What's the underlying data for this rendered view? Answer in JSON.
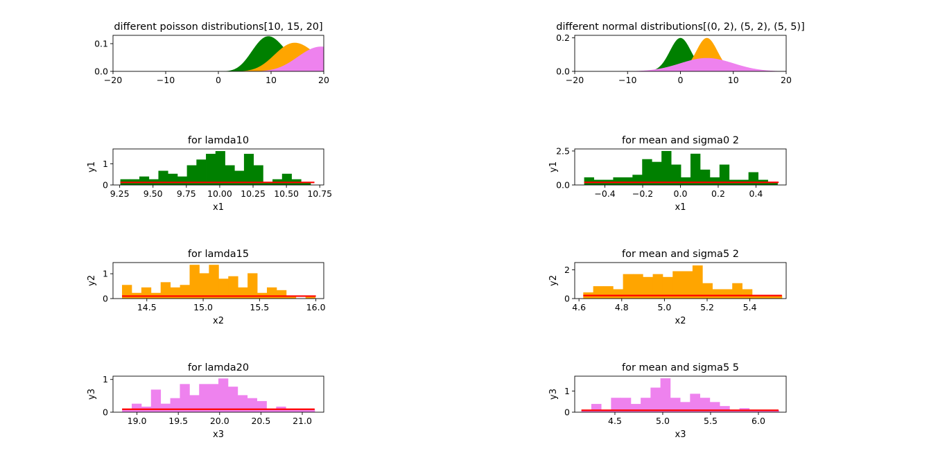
{
  "figure": {
    "background": "#ffffff"
  },
  "chart_data": [
    {
      "type": "area",
      "title": "different poisson distributions[10, 15, 20]",
      "xlabel": "",
      "ylabel": "",
      "xlim": [
        -20,
        20
      ],
      "ylim": [
        0,
        0.13
      ],
      "xticks": [
        -20,
        -10,
        0,
        10,
        20
      ],
      "xticklabels": [
        "−20",
        "−10",
        "0",
        "10",
        "20"
      ],
      "yticks": [
        0,
        0.1
      ],
      "yticklabels": [
        "0.0",
        "0.1"
      ],
      "grid": false,
      "series": [
        {
          "dist": "poisson",
          "lambda": 10,
          "color": "#008000"
        },
        {
          "dist": "poisson",
          "lambda": 15,
          "color": "#ffa500"
        },
        {
          "dist": "poisson",
          "lambda": 20,
          "color": "#ee82ee"
        }
      ]
    },
    {
      "type": "area",
      "title": "different normal distributions[(0, 2), (5, 2), (5, 5)]",
      "xlabel": "",
      "ylabel": "",
      "xlim": [
        -20,
        20
      ],
      "ylim": [
        0,
        0.215
      ],
      "xticks": [
        -20,
        -10,
        0,
        10,
        20
      ],
      "xticklabels": [
        "−20",
        "−10",
        "0",
        "10",
        "20"
      ],
      "yticks": [
        0,
        0.2
      ],
      "yticklabels": [
        "0.0",
        "0.2"
      ],
      "grid": false,
      "series": [
        {
          "dist": "normal",
          "mean": 0,
          "sigma": 2,
          "color": "#008000"
        },
        {
          "dist": "normal",
          "mean": 5,
          "sigma": 2,
          "color": "#ffa500"
        },
        {
          "dist": "normal",
          "mean": 5,
          "sigma": 5,
          "color": "#ee82ee"
        }
      ]
    },
    {
      "type": "bar",
      "title": "for lamda10",
      "xlabel": "x1",
      "ylabel": "y1",
      "color": "#008000",
      "line_color": "#ff0000",
      "xlim": [
        9.2,
        10.78
      ],
      "ylim": [
        0,
        1.7
      ],
      "xticks": [
        9.25,
        9.5,
        9.75,
        10.0,
        10.25,
        10.5,
        10.75
      ],
      "xticklabels": [
        "9.25",
        "9.50",
        "9.75",
        "10.00",
        "10.25",
        "10.50",
        "10.75"
      ],
      "yticks": [
        0,
        1
      ],
      "yticklabels": [
        "0",
        "1"
      ],
      "bin_start": 9.255,
      "bin_width": 0.0713,
      "values": [
        0.27,
        0.27,
        0.4,
        0.27,
        0.67,
        0.53,
        0.4,
        0.93,
        1.2,
        1.47,
        1.6,
        0.93,
        0.67,
        1.47,
        0.93,
        0.13,
        0.27,
        0.53,
        0.27,
        0.13
      ],
      "line": {
        "x": [
          9.255,
          10.71
        ],
        "y": [
          0.12,
          0.12
        ]
      }
    },
    {
      "type": "bar",
      "title": "for mean and sigma0 2",
      "xlabel": "x1",
      "ylabel": "y1",
      "color": "#008000",
      "line_color": "#ff0000",
      "xlim": [
        -0.56,
        0.56
      ],
      "ylim": [
        0,
        2.65
      ],
      "xticks": [
        -0.4,
        -0.2,
        0.0,
        0.2,
        0.4
      ],
      "xticklabels": [
        "−0.4",
        "−0.2",
        "0.0",
        "0.2",
        "0.4"
      ],
      "yticks": [
        0,
        2.5
      ],
      "yticklabels": [
        "0.0",
        "2.5"
      ],
      "bin_start": -0.51,
      "bin_width": 0.0512,
      "values": [
        0.56,
        0.38,
        0.38,
        0.56,
        0.56,
        0.75,
        1.9,
        1.7,
        2.5,
        1.5,
        0.56,
        2.3,
        1.13,
        0.56,
        1.5,
        0.38,
        0.38,
        0.94,
        0.38,
        0.19
      ],
      "line": {
        "x": [
          -0.51,
          0.52
        ],
        "y": [
          0.19,
          0.19
        ]
      }
    },
    {
      "type": "bar",
      "title": "for lamda15",
      "xlabel": "x2",
      "ylabel": "y2",
      "color": "#ffa500",
      "line_color": "#ff0000",
      "xlim": [
        14.2,
        16.07
      ],
      "ylim": [
        0,
        1.45
      ],
      "xticks": [
        14.5,
        15.0,
        15.5,
        16.0
      ],
      "xticklabels": [
        "14.5",
        "15.0",
        "15.5",
        "16.0"
      ],
      "yticks": [
        0,
        1
      ],
      "yticklabels": [
        "0",
        "1"
      ],
      "bin_start": 14.28,
      "bin_width": 0.0857,
      "values": [
        0.55,
        0.23,
        0.45,
        0.23,
        0.66,
        0.45,
        0.55,
        1.36,
        1.02,
        1.36,
        0.8,
        0.9,
        0.45,
        1.02,
        0.23,
        0.45,
        0.34,
        0.11,
        0.0,
        0.11
      ],
      "line": {
        "x": [
          14.28,
          16.0
        ],
        "y": [
          0.1,
          0.1
        ]
      }
    },
    {
      "type": "bar",
      "title": "for mean and sigma5 2",
      "xlabel": "x2",
      "ylabel": "y2",
      "color": "#ffa500",
      "line_color": "#ff0000",
      "xlim": [
        4.58,
        5.57
      ],
      "ylim": [
        0,
        2.5
      ],
      "xticks": [
        4.6,
        4.8,
        5.0,
        5.2,
        5.4
      ],
      "xticklabels": [
        "4.6",
        "4.8",
        "5.0",
        "5.2",
        "5.4"
      ],
      "yticks": [
        0,
        2
      ],
      "yticklabels": [
        "0",
        "2"
      ],
      "bin_start": 4.62,
      "bin_width": 0.0465,
      "values": [
        0.43,
        0.86,
        0.86,
        0.65,
        1.7,
        1.7,
        1.5,
        1.7,
        1.5,
        1.9,
        1.9,
        2.3,
        1.07,
        0.65,
        0.65,
        1.07,
        0.65,
        0.22,
        0.22,
        0.22
      ],
      "line": {
        "x": [
          4.62,
          5.55
        ],
        "y": [
          0.21,
          0.21
        ]
      }
    },
    {
      "type": "bar",
      "title": "for lamda20",
      "xlabel": "x3",
      "ylabel": "y3",
      "color": "#ee82ee",
      "line_color": "#ff0000",
      "xlim": [
        18.71,
        21.26
      ],
      "ylim": [
        0,
        1.1
      ],
      "xticks": [
        19.0,
        19.5,
        20.0,
        20.5,
        21.0
      ],
      "xticklabels": [
        "19.0",
        "19.5",
        "20.0",
        "20.5",
        "21.0"
      ],
      "yticks": [
        0,
        1
      ],
      "yticklabels": [
        "0",
        "1"
      ],
      "bin_start": 18.82,
      "bin_width": 0.1165,
      "values": [
        0.09,
        0.26,
        0.17,
        0.69,
        0.26,
        0.43,
        0.86,
        0.52,
        0.86,
        0.86,
        1.03,
        0.78,
        0.52,
        0.43,
        0.34,
        0.09,
        0.17,
        0.09,
        0.09,
        0.09
      ],
      "line": {
        "x": [
          18.82,
          21.15
        ],
        "y": [
          0.09,
          0.09
        ]
      }
    },
    {
      "type": "bar",
      "title": "for mean and sigma5 5",
      "xlabel": "x3",
      "ylabel": "y3",
      "color": "#ee82ee",
      "line_color": "#ff0000",
      "xlim": [
        4.08,
        6.29
      ],
      "ylim": [
        0,
        1.7
      ],
      "xticks": [
        4.5,
        5.0,
        5.5,
        6.0
      ],
      "xticklabels": [
        "4.5",
        "5.0",
        "5.5",
        "6.0"
      ],
      "yticks": [
        0,
        1
      ],
      "yticklabels": [
        "0",
        "1"
      ],
      "bin_start": 4.15,
      "bin_width": 0.1032,
      "values": [
        0.1,
        0.39,
        0.1,
        0.68,
        0.68,
        0.39,
        0.68,
        1.16,
        1.6,
        0.68,
        0.48,
        0.87,
        0.68,
        0.48,
        0.29,
        0.1,
        0.19,
        0.1,
        0.1,
        0.1
      ],
      "line": {
        "x": [
          4.15,
          6.21
        ],
        "y": [
          0.09,
          0.09
        ]
      }
    }
  ]
}
